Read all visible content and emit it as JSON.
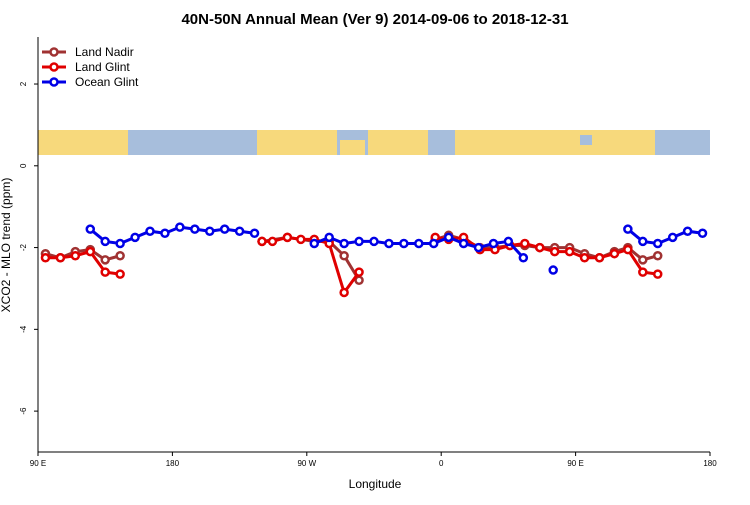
{
  "chart_data": {
    "type": "line",
    "title": "40N-50N Annual Mean (Ver 9)   2014-09-06 to 2018-12-31",
    "xlabel": "Longitude",
    "ylabel": "XCO2 - MLO trend (ppm)",
    "xlim": [
      90,
      540
    ],
    "ylim": [
      -7,
      3.15
    ],
    "xticks": [
      {
        "value": 90,
        "label": "90 E"
      },
      180,
      {
        "value": 270,
        "label": "90 W"
      },
      {
        "value": 360,
        "label": "0"
      },
      {
        "value": 450,
        "label": "90 E"
      },
      {
        "value": 540,
        "label": "180"
      }
    ],
    "yticks": [
      -6,
      -4,
      -2,
      0,
      2
    ],
    "legend": "top-left",
    "series": [
      {
        "name": "Land Nadir",
        "color": "#a03232",
        "x": [
          95,
          105,
          115,
          125,
          135,
          145,
          200,
          240,
          257,
          275,
          285,
          295,
          305,
          330,
          356,
          365,
          375,
          386,
          396,
          406,
          416,
          426,
          436,
          446,
          456,
          466,
          476,
          485,
          495,
          505
        ],
        "values": [
          -2.15,
          -2.25,
          -2.1,
          -2.05,
          -2.3,
          -2.2,
          null,
          -1.85,
          -1.75,
          -1.85,
          -1.85,
          -2.2,
          -2.8,
          null,
          -1.8,
          -1.7,
          -1.8,
          -2.0,
          -2.0,
          -1.95,
          -1.95,
          -2.0,
          -2.0,
          -2.0,
          -2.15,
          -2.25,
          -2.1,
          -2.0,
          -2.3,
          -2.2
        ]
      },
      {
        "name": "Land Glint",
        "color": "#e00000",
        "x": [
          95,
          105,
          115,
          125,
          135,
          145,
          200,
          240,
          247,
          257,
          266,
          275,
          285,
          295,
          305,
          330,
          356,
          365,
          375,
          386,
          396,
          406,
          416,
          426,
          436,
          446,
          456,
          466,
          476,
          485,
          495,
          505
        ],
        "values": [
          -2.25,
          -2.25,
          -2.2,
          -2.1,
          -2.6,
          -2.65,
          null,
          -1.85,
          -1.85,
          -1.75,
          -1.8,
          -1.8,
          -1.9,
          -3.1,
          -2.6,
          null,
          -1.75,
          -1.8,
          -1.75,
          -2.05,
          -2.05,
          -1.95,
          -1.9,
          -2.0,
          -2.1,
          -2.1,
          -2.25,
          -2.25,
          -2.15,
          -2.05,
          -2.6,
          -2.65
        ]
      },
      {
        "name": "Ocean Glint",
        "color": "#0000e6",
        "x": [
          125,
          135,
          145,
          155,
          165,
          175,
          185,
          195,
          205,
          215,
          225,
          235,
          255,
          275,
          285,
          295,
          305,
          315,
          325,
          335,
          345,
          355,
          365,
          375,
          385,
          395,
          405,
          415,
          425,
          435,
          460,
          485,
          495,
          505,
          515,
          525,
          535
        ],
        "values": [
          -1.55,
          -1.85,
          -1.9,
          -1.75,
          -1.6,
          -1.65,
          -1.5,
          -1.55,
          -1.6,
          -1.55,
          -1.6,
          -1.65,
          null,
          -1.9,
          -1.75,
          -1.9,
          -1.85,
          -1.85,
          -1.9,
          -1.9,
          -1.9,
          -1.9,
          -1.75,
          -1.9,
          -2.0,
          -1.9,
          -1.85,
          -2.25,
          null,
          -2.55,
          null,
          -1.55,
          -1.85,
          -1.9,
          -1.75,
          -1.6,
          -1.65
        ]
      }
    ]
  }
}
